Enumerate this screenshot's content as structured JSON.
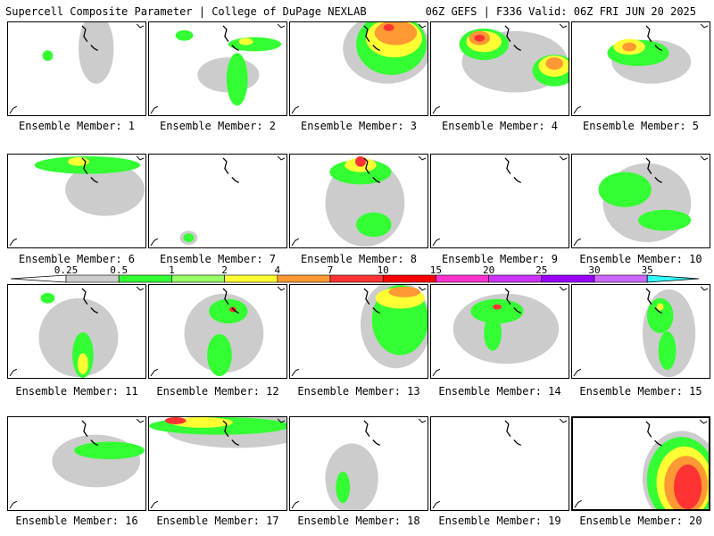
{
  "header": {
    "left": "Supercell Composite Parameter | College of DuPage NEXLAB",
    "right": "06Z GEFS | F336 Valid: 06Z FRI JUN 20 2025"
  },
  "colorbar": {
    "ticks": [
      "0.25",
      "0.5",
      "1",
      "2",
      "4",
      "7",
      "10",
      "15",
      "20",
      "25",
      "30",
      "35"
    ],
    "colors": [
      "#cccccc",
      "#33ff33",
      "#99ff66",
      "#ffff33",
      "#ff9933",
      "#ff3333",
      "#ff0000",
      "#ff33cc",
      "#cc33ff",
      "#9900ff",
      "#cc66ff",
      "#33ffff"
    ]
  },
  "members": [
    {
      "label": "Ensemble Member: 1",
      "blobs": [
        {
          "c": "g",
          "x": 45,
          "y": 38,
          "r": 6
        },
        {
          "c": "g",
          "x": 110,
          "y": 35,
          "r": 5
        },
        {
          "c": "gry",
          "x": 100,
          "y": 30,
          "r": 20,
          "ry": 40
        }
      ]
    },
    {
      "label": "Ensemble Member: 2",
      "blobs": [
        {
          "c": "gry",
          "x": 90,
          "y": 60,
          "r": 35,
          "ry": 20
        },
        {
          "c": "g",
          "x": 100,
          "y": 65,
          "r": 12,
          "ry": 30
        },
        {
          "c": "g",
          "x": 120,
          "y": 25,
          "r": 30,
          "ry": 8
        },
        {
          "c": "y",
          "x": 110,
          "y": 22,
          "r": 8,
          "ry": 4
        },
        {
          "c": "g",
          "x": 40,
          "y": 15,
          "r": 10,
          "ry": 6
        }
      ]
    },
    {
      "label": "Ensemble Member: 3",
      "blobs": [
        {
          "c": "gry",
          "x": 110,
          "y": 30,
          "r": 50,
          "ry": 40
        },
        {
          "c": "g",
          "x": 115,
          "y": 25,
          "r": 40,
          "ry": 35
        },
        {
          "c": "y",
          "x": 118,
          "y": 18,
          "r": 32,
          "ry": 22
        },
        {
          "c": "o",
          "x": 120,
          "y": 12,
          "r": 24,
          "ry": 14
        },
        {
          "c": "r",
          "x": 112,
          "y": 6,
          "r": 6,
          "ry": 4
        }
      ]
    },
    {
      "label": "Ensemble Member: 4",
      "blobs": [
        {
          "c": "gry",
          "x": 95,
          "y": 45,
          "r": 60,
          "ry": 35
        },
        {
          "c": "g",
          "x": 60,
          "y": 25,
          "r": 28,
          "ry": 18
        },
        {
          "c": "y",
          "x": 60,
          "y": 22,
          "r": 20,
          "ry": 12
        },
        {
          "c": "o",
          "x": 55,
          "y": 18,
          "r": 12,
          "ry": 8
        },
        {
          "c": "r",
          "x": 55,
          "y": 18,
          "r": 6,
          "ry": 4
        },
        {
          "c": "g",
          "x": 140,
          "y": 55,
          "r": 25,
          "ry": 18
        },
        {
          "c": "y",
          "x": 140,
          "y": 50,
          "r": 18,
          "ry": 12
        },
        {
          "c": "o",
          "x": 140,
          "y": 47,
          "r": 10,
          "ry": 7
        }
      ]
    },
    {
      "label": "Ensemble Member: 5",
      "blobs": [
        {
          "c": "gry",
          "x": 90,
          "y": 45,
          "r": 45,
          "ry": 25
        },
        {
          "c": "g",
          "x": 75,
          "y": 35,
          "r": 35,
          "ry": 15
        },
        {
          "c": "y",
          "x": 65,
          "y": 28,
          "r": 18,
          "ry": 9
        },
        {
          "c": "o",
          "x": 65,
          "y": 28,
          "r": 8,
          "ry": 5
        }
      ]
    },
    {
      "label": "Ensemble Member: 6",
      "blobs": [
        {
          "c": "gry",
          "x": 110,
          "y": 40,
          "r": 45,
          "ry": 30
        },
        {
          "c": "g",
          "x": 90,
          "y": 12,
          "r": 60,
          "ry": 10
        },
        {
          "c": "y",
          "x": 80,
          "y": 8,
          "r": 12,
          "ry": 5
        }
      ]
    },
    {
      "label": "Ensemble Member: 7",
      "blobs": [
        {
          "c": "gry",
          "x": 45,
          "y": 95,
          "r": 10,
          "ry": 8
        },
        {
          "c": "g",
          "x": 45,
          "y": 95,
          "r": 6,
          "ry": 5
        }
      ]
    },
    {
      "label": "Ensemble Member: 8",
      "blobs": [
        {
          "c": "gry",
          "x": 85,
          "y": 55,
          "r": 45,
          "ry": 50
        },
        {
          "c": "g",
          "x": 80,
          "y": 20,
          "r": 35,
          "ry": 14
        },
        {
          "c": "y",
          "x": 80,
          "y": 12,
          "r": 18,
          "ry": 8
        },
        {
          "c": "r",
          "x": 80,
          "y": 8,
          "r": 6,
          "ry": 6
        },
        {
          "c": "g",
          "x": 95,
          "y": 80,
          "r": 20,
          "ry": 14
        }
      ]
    },
    {
      "label": "Ensemble Member: 9",
      "blobs": []
    },
    {
      "label": "Ensemble Member: 10",
      "blobs": [
        {
          "c": "gry",
          "x": 85,
          "y": 55,
          "r": 50,
          "ry": 45
        },
        {
          "c": "g",
          "x": 60,
          "y": 40,
          "r": 30,
          "ry": 20
        },
        {
          "c": "g",
          "x": 105,
          "y": 75,
          "r": 30,
          "ry": 12
        }
      ]
    },
    {
      "label": "Ensemble Member: 11",
      "blobs": [
        {
          "c": "gry",
          "x": 80,
          "y": 60,
          "r": 45,
          "ry": 45
        },
        {
          "c": "g",
          "x": 45,
          "y": 15,
          "r": 8,
          "ry": 6
        },
        {
          "c": "g",
          "x": 85,
          "y": 80,
          "r": 12,
          "ry": 26
        },
        {
          "c": "y",
          "x": 85,
          "y": 90,
          "r": 6,
          "ry": 12
        }
      ]
    },
    {
      "label": "Ensemble Member: 12",
      "blobs": [
        {
          "c": "gry",
          "x": 85,
          "y": 55,
          "r": 45,
          "ry": 45
        },
        {
          "c": "g",
          "x": 90,
          "y": 30,
          "r": 22,
          "ry": 14
        },
        {
          "c": "g",
          "x": 80,
          "y": 80,
          "r": 14,
          "ry": 24
        },
        {
          "c": "r",
          "x": 95,
          "y": 28,
          "r": 4,
          "ry": 3
        }
      ]
    },
    {
      "label": "Ensemble Member: 13",
      "blobs": [
        {
          "c": "gry",
          "x": 120,
          "y": 45,
          "r": 40,
          "ry": 50
        },
        {
          "c": "g",
          "x": 125,
          "y": 40,
          "r": 32,
          "ry": 40
        },
        {
          "c": "y",
          "x": 125,
          "y": 15,
          "r": 28,
          "ry": 12
        },
        {
          "c": "o",
          "x": 130,
          "y": 8,
          "r": 18,
          "ry": 6
        }
      ]
    },
    {
      "label": "Ensemble Member: 14",
      "blobs": [
        {
          "c": "gry",
          "x": 85,
          "y": 50,
          "r": 60,
          "ry": 40
        },
        {
          "c": "g",
          "x": 75,
          "y": 30,
          "r": 30,
          "ry": 14
        },
        {
          "c": "g",
          "x": 70,
          "y": 55,
          "r": 10,
          "ry": 20
        },
        {
          "c": "r",
          "x": 75,
          "y": 25,
          "r": 5,
          "ry": 3
        }
      ]
    },
    {
      "label": "Ensemble Member: 15",
      "blobs": [
        {
          "c": "gry",
          "x": 110,
          "y": 55,
          "r": 30,
          "ry": 50
        },
        {
          "c": "g",
          "x": 100,
          "y": 35,
          "r": 15,
          "ry": 20
        },
        {
          "c": "g",
          "x": 108,
          "y": 75,
          "r": 10,
          "ry": 22
        },
        {
          "c": "y",
          "x": 100,
          "y": 25,
          "r": 4,
          "ry": 4
        }
      ]
    },
    {
      "label": "Ensemble Member: 16",
      "blobs": [
        {
          "c": "gry",
          "x": 100,
          "y": 50,
          "r": 50,
          "ry": 30
        },
        {
          "c": "g",
          "x": 115,
          "y": 38,
          "r": 40,
          "ry": 10
        }
      ]
    },
    {
      "label": "Ensemble Member: 17",
      "blobs": [
        {
          "c": "gry",
          "x": 100,
          "y": 15,
          "r": 80,
          "ry": 20
        },
        {
          "c": "g",
          "x": 80,
          "y": 10,
          "r": 80,
          "ry": 10
        },
        {
          "c": "y",
          "x": 60,
          "y": 6,
          "r": 35,
          "ry": 6
        },
        {
          "c": "r",
          "x": 30,
          "y": 4,
          "r": 12,
          "ry": 4
        }
      ]
    },
    {
      "label": "Ensemble Member: 18",
      "blobs": [
        {
          "c": "gry",
          "x": 70,
          "y": 70,
          "r": 30,
          "ry": 40
        },
        {
          "c": "g",
          "x": 60,
          "y": 80,
          "r": 8,
          "ry": 18
        }
      ]
    },
    {
      "label": "Ensemble Member: 19",
      "blobs": []
    },
    {
      "label": "Ensemble Member: 20",
      "blobs": [
        {
          "c": "gry",
          "x": 125,
          "y": 70,
          "r": 45,
          "ry": 55
        },
        {
          "c": "g",
          "x": 125,
          "y": 72,
          "r": 40,
          "ry": 50
        },
        {
          "c": "y",
          "x": 128,
          "y": 75,
          "r": 32,
          "ry": 42
        },
        {
          "c": "o",
          "x": 130,
          "y": 78,
          "r": 25,
          "ry": 34
        },
        {
          "c": "r",
          "x": 132,
          "y": 80,
          "r": 16,
          "ry": 26
        }
      ]
    }
  ]
}
